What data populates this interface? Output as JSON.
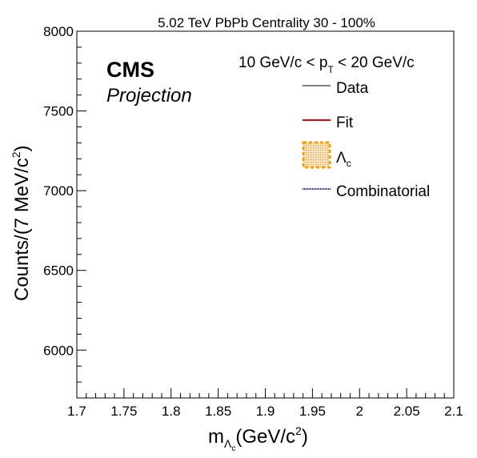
{
  "chart_data": {
    "type": "line",
    "title": "5.02 TeV PbPb Centrality 30 - 100%",
    "annotation": {
      "experiment": "CMS",
      "status": "Projection",
      "pt_prefix": "10 GeV/c < p",
      "pt_sub": "T",
      "pt_suffix": " < 20 GeV/c"
    },
    "xlabel": {
      "main": "m",
      "sub": "Λ",
      "subsub": "c",
      "rest": "(GeV/c",
      "sup": "2",
      "close": ")"
    },
    "ylabel": {
      "main": "Counts/(7 MeV/c",
      "sup": "2",
      "close": ")"
    },
    "xlim": [
      1.7,
      2.1
    ],
    "ylim": [
      5700,
      8000
    ],
    "xticks": [
      "1.7",
      "1.75",
      "1.8",
      "1.85",
      "1.9",
      "1.95",
      "2",
      "2.05",
      "2.1"
    ],
    "yticks": [
      "6000",
      "6500",
      "7000",
      "7500",
      "8000"
    ],
    "legend": {
      "data": "Data",
      "fit": "Fit",
      "signal_main": "Λ",
      "signal_sub": "c",
      "combinatorial": "Combinatorial"
    },
    "series": []
  },
  "colors": {
    "data": "#000000",
    "fit": "#e00000",
    "signal_edge": "#f5a000",
    "signal_fill": "#f7d9a0",
    "combinatorial": "#0000a0"
  }
}
